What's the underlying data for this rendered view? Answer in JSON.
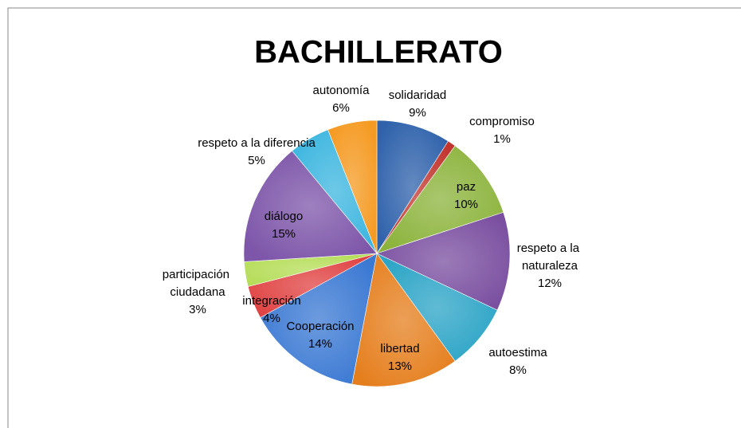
{
  "chart_data": {
    "type": "pie",
    "title": "BACHILLERATO",
    "categories": [
      "solidaridad",
      "compromiso",
      "paz",
      "respeto a la naturaleza",
      "autoestima",
      "libertad",
      "Cooperación",
      "integración",
      "participación ciudadana",
      "diálogo",
      "respeto a la diferencia",
      "autonomía"
    ],
    "values": [
      9,
      1,
      10,
      12,
      8,
      13,
      14,
      4,
      3,
      15,
      5,
      6
    ],
    "value_labels": [
      "9%",
      "1%",
      "10%",
      "12%",
      "8%",
      "13%",
      "14%",
      "4%",
      "3%",
      "15%",
      "5%",
      "6%"
    ],
    "colors": [
      "#2f62ab",
      "#c2352e",
      "#8cb33c",
      "#7a4fa0",
      "#2ba4c6",
      "#e57f1e",
      "#3b79d3",
      "#e04242",
      "#b5dd58",
      "#7d55a9",
      "#3db6df",
      "#f59a22"
    ]
  }
}
